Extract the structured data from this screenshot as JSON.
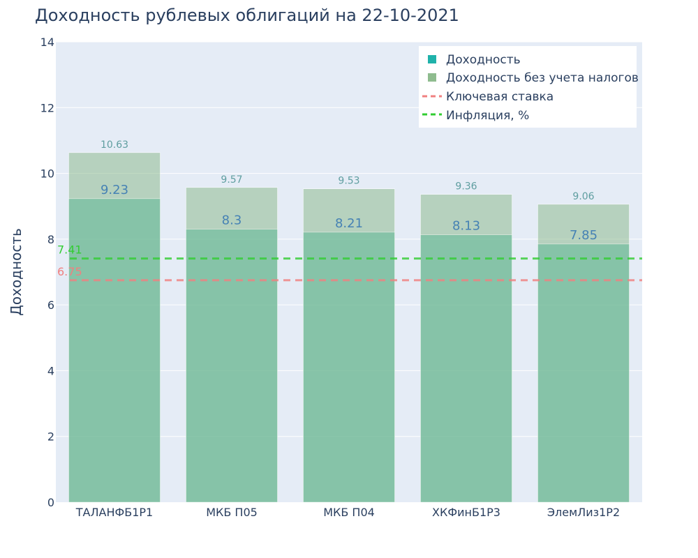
{
  "chart_data": {
    "type": "bar",
    "title": "Доходность рублевых облигаций на 22-10-2021",
    "ylabel": "Доходность",
    "xlabel": "",
    "ylim": [
      0,
      14
    ],
    "yticks": [
      0,
      2,
      4,
      6,
      8,
      10,
      12,
      14
    ],
    "grid": true,
    "barmode": "overlay",
    "categories": [
      "ТАЛАНФБ1Р1",
      "МКБ П05",
      "МКБ П04",
      "ХКФинБ1Р3",
      "ЭлемЛиз1Р2"
    ],
    "series": [
      {
        "name": "Доходность",
        "values": [
          9.23,
          8.3,
          8.21,
          8.13,
          7.85
        ],
        "color": "#20b2aa"
      },
      {
        "name": "Доходность без учета налогов",
        "values": [
          10.63,
          9.57,
          9.53,
          9.36,
          9.06
        ],
        "color": "#8fbc8f"
      }
    ],
    "lines": [
      {
        "name": "Ключевая ставка",
        "value": 6.75,
        "label": "6.75",
        "color": "#f08080",
        "dash": "dash"
      },
      {
        "name": "Инфляция, %",
        "value": 7.41,
        "label": "7.41",
        "color": "#32cd32",
        "dash": "dash"
      }
    ],
    "legend_position": "top-right"
  }
}
